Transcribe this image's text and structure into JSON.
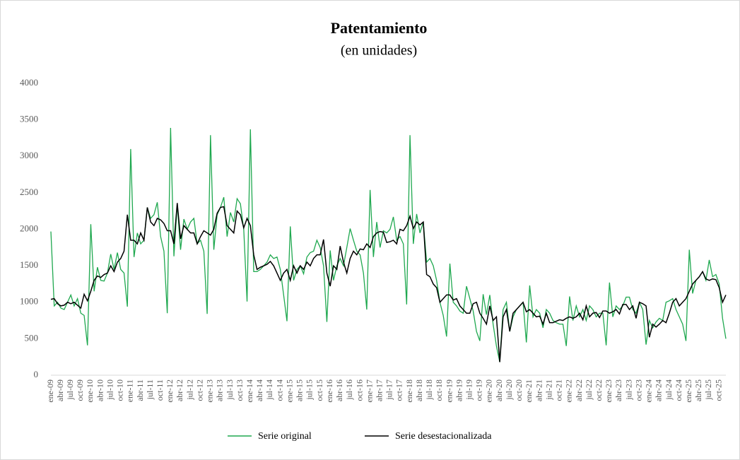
{
  "chart_data": {
    "type": "line",
    "title": "Patentamiento",
    "subtitle": "(en unidades)",
    "categories": [
      "ene-09",
      null,
      null,
      "abr-09",
      null,
      null,
      "jul-09",
      null,
      null,
      "oct-09",
      null,
      null,
      "ene-10",
      null,
      null,
      "abr-10",
      null,
      null,
      "jul-10",
      null,
      null,
      "oct-10",
      null,
      null,
      "ene-11",
      null,
      null,
      "abr-11",
      null,
      null,
      "jul-11",
      null,
      null,
      "oct-11",
      null,
      null,
      "ene-12",
      null,
      null,
      "abr-12",
      null,
      null,
      "jul-12",
      null,
      null,
      "oct-12",
      null,
      null,
      "ene-13",
      null,
      null,
      "abr-13",
      null,
      null,
      "jul-13",
      null,
      null,
      "oct-13",
      null,
      null,
      "ene-14",
      null,
      null,
      "abr-14",
      null,
      null,
      "jul-14",
      null,
      null,
      "oct-14",
      null,
      null,
      "ene-15",
      null,
      null,
      "abr-15",
      null,
      null,
      "jul-15",
      null,
      null,
      "oct-15",
      null,
      null,
      "ene-16",
      null,
      null,
      "abr-16",
      null,
      null,
      "jul-16",
      null,
      null,
      "oct-16",
      null,
      null,
      "ene-17",
      null,
      null,
      "abr-17",
      null,
      null,
      "jul-17",
      null,
      null,
      "oct-17",
      null,
      null,
      "ene-18",
      null,
      null,
      "abr-18",
      null,
      null,
      "jul-18",
      null,
      null,
      "oct-18",
      null,
      null,
      "ene-19",
      null,
      null,
      "abr-19",
      null,
      null,
      "jul-19",
      null,
      null,
      "oct-19",
      null,
      null,
      "ene-20",
      null,
      null,
      "abr-20",
      null,
      null,
      "jul-20",
      null,
      null,
      "oct-20",
      null,
      null,
      "ene-21",
      null,
      null,
      "abr-21",
      null,
      null,
      "jul-21",
      null,
      null,
      "oct-21",
      null,
      null,
      "ene-22",
      null,
      null,
      "abr-22",
      null,
      null,
      "jul-22",
      null,
      null,
      "oct-22",
      null,
      null,
      "ene-23",
      null,
      null,
      "abr-23",
      null,
      null,
      "jul-23",
      null,
      null,
      "oct-23",
      null,
      null,
      "ene-24",
      null,
      null,
      "abr-24",
      null,
      null,
      "jul-24",
      null,
      null,
      "oct-24",
      null,
      null,
      "ene-25",
      null,
      null,
      "abr-25",
      null,
      null,
      "jul-25",
      null,
      null,
      "oct-25",
      null,
      null
    ],
    "series": [
      {
        "name": "Serie original",
        "color": "#1fa84f",
        "values": [
          1970,
          950,
          1000,
          920,
          900,
          1000,
          1100,
          950,
          1050,
          850,
          820,
          410,
          2070,
          1150,
          1480,
          1300,
          1290,
          1400,
          1660,
          1450,
          1680,
          1450,
          1400,
          940,
          3100,
          1620,
          1950,
          1800,
          1850,
          2300,
          2150,
          2200,
          2370,
          1900,
          1700,
          850,
          3390,
          1630,
          2340,
          1720,
          2140,
          2000,
          2100,
          2150,
          1800,
          1850,
          1700,
          840,
          3290,
          1720,
          2200,
          2300,
          2440,
          1900,
          2230,
          2100,
          2420,
          2350,
          2000,
          1010,
          3370,
          1420,
          1420,
          1450,
          1500,
          1550,
          1650,
          1600,
          1620,
          1450,
          1100,
          740,
          2040,
          1300,
          1450,
          1500,
          1390,
          1620,
          1680,
          1700,
          1850,
          1750,
          1500,
          730,
          1710,
          1300,
          1500,
          1600,
          1500,
          1750,
          2010,
          1850,
          1700,
          1650,
          1400,
          900,
          2540,
          1620,
          2100,
          1750,
          1980,
          1950,
          2000,
          2170,
          1850,
          1900,
          1800,
          970,
          3290,
          1800,
          2210,
          1950,
          2100,
          1550,
          1600,
          1500,
          1300,
          1000,
          820,
          530,
          1530,
          1000,
          950,
          880,
          850,
          1220,
          1050,
          880,
          600,
          470,
          1110,
          830,
          1100,
          700,
          400,
          180,
          900,
          1000,
          600,
          800,
          900,
          950,
          1000,
          450,
          1230,
          800,
          900,
          850,
          650,
          900,
          850,
          750,
          720,
          700,
          700,
          400,
          1080,
          750,
          950,
          800,
          900,
          750,
          950,
          900,
          800,
          850,
          850,
          410,
          1270,
          800,
          950,
          900,
          950,
          1070,
          1070,
          900,
          850,
          1000,
          900,
          420,
          750,
          650,
          730,
          780,
          750,
          1000,
          1020,
          1050,
          900,
          800,
          700,
          470,
          1720,
          1120,
          1300,
          1350,
          1420,
          1300,
          1580,
          1350,
          1380,
          1250,
          780,
          500
        ]
      },
      {
        "name": "Serie desestacionalizada",
        "color": "#000000",
        "values": [
          1040,
          1050,
          980,
          950,
          960,
          1000,
          980,
          1000,
          960,
          920,
          1110,
          1020,
          1150,
          1300,
          1360,
          1340,
          1380,
          1400,
          1500,
          1420,
          1550,
          1600,
          1700,
          2200,
          1850,
          1850,
          1800,
          1950,
          1850,
          2300,
          2100,
          2050,
          2150,
          2130,
          2080,
          1980,
          1980,
          1800,
          2360,
          1870,
          2050,
          2000,
          1950,
          1950,
          1800,
          1900,
          1980,
          1950,
          1920,
          2000,
          2220,
          2300,
          2310,
          2050,
          2000,
          1950,
          2250,
          2200,
          2020,
          2150,
          2050,
          1650,
          1450,
          1480,
          1500,
          1520,
          1560,
          1500,
          1400,
          1300,
          1400,
          1450,
          1300,
          1500,
          1400,
          1500,
          1450,
          1550,
          1500,
          1600,
          1650,
          1650,
          1860,
          1400,
          1220,
          1500,
          1450,
          1770,
          1550,
          1400,
          1600,
          1700,
          1650,
          1730,
          1720,
          1800,
          1750,
          1900,
          1950,
          1970,
          1960,
          1820,
          1830,
          1850,
          1800,
          2000,
          1980,
          2050,
          2180,
          2010,
          2100,
          2060,
          2100,
          1380,
          1350,
          1250,
          1200,
          1000,
          1050,
          1100,
          1100,
          1030,
          1050,
          950,
          900,
          850,
          850,
          980,
          1000,
          850,
          780,
          700,
          950,
          750,
          800,
          180,
          800,
          900,
          600,
          850,
          900,
          950,
          1000,
          870,
          900,
          850,
          800,
          810,
          700,
          850,
          720,
          720,
          740,
          760,
          750,
          780,
          800,
          780,
          800,
          850,
          760,
          950,
          800,
          850,
          860,
          790,
          880,
          880,
          850,
          870,
          900,
          840,
          970,
          970,
          900,
          950,
          780,
          1000,
          980,
          950,
          520,
          700,
          660,
          700,
          750,
          720,
          850,
          1000,
          1050,
          950,
          1000,
          1050,
          1150,
          1250,
          1300,
          1350,
          1420,
          1320,
          1300,
          1320,
          1310,
          1200,
          1000,
          1100
        ]
      }
    ],
    "ylim": [
      0,
      4000
    ],
    "yticks": [
      0,
      500,
      1000,
      1500,
      2000,
      2500,
      3000,
      3500,
      4000
    ],
    "grid": false,
    "legend": "bottom"
  }
}
